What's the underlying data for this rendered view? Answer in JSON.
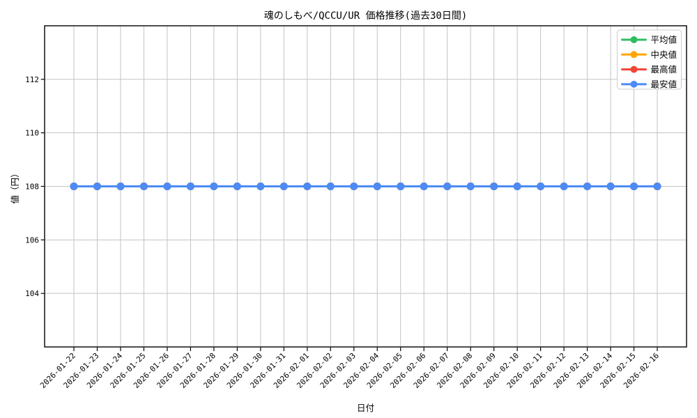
{
  "chart_data": {
    "type": "line",
    "title": "魂のしもべ/QCCU/UR 価格推移(過去30日間)",
    "xlabel": "日付",
    "ylabel": "値（円）",
    "x": [
      "2026-01-22",
      "2026-01-23",
      "2026-01-24",
      "2026-01-25",
      "2026-01-26",
      "2026-01-27",
      "2026-01-28",
      "2026-01-29",
      "2026-01-30",
      "2026-01-31",
      "2026-02-01",
      "2026-02-02",
      "2026-02-03",
      "2026-02-04",
      "2026-02-05",
      "2026-02-06",
      "2026-02-07",
      "2026-02-08",
      "2026-02-09",
      "2026-02-10",
      "2026-02-11",
      "2026-02-12",
      "2026-02-13",
      "2026-02-14",
      "2026-02-15",
      "2026-02-16"
    ],
    "series": [
      {
        "name": "平均値",
        "color": "#2EBD60",
        "values": [
          108,
          108,
          108,
          108,
          108,
          108,
          108,
          108,
          108,
          108,
          108,
          108,
          108,
          108,
          108,
          108,
          108,
          108,
          108,
          108,
          108,
          108,
          108,
          108,
          108,
          108
        ]
      },
      {
        "name": "中央値",
        "color": "#FFA500",
        "values": [
          108,
          108,
          108,
          108,
          108,
          108,
          108,
          108,
          108,
          108,
          108,
          108,
          108,
          108,
          108,
          108,
          108,
          108,
          108,
          108,
          108,
          108,
          108,
          108,
          108,
          108
        ]
      },
      {
        "name": "最高値",
        "color": "#F44336",
        "values": [
          108,
          108,
          108,
          108,
          108,
          108,
          108,
          108,
          108,
          108,
          108,
          108,
          108,
          108,
          108,
          108,
          108,
          108,
          108,
          108,
          108,
          108,
          108,
          108,
          108,
          108
        ]
      },
      {
        "name": "最安値",
        "color": "#4C8BF5",
        "values": [
          108,
          108,
          108,
          108,
          108,
          108,
          108,
          108,
          108,
          108,
          108,
          108,
          108,
          108,
          108,
          108,
          108,
          108,
          108,
          108,
          108,
          108,
          108,
          108,
          108,
          108
        ]
      }
    ],
    "ylim": [
      102,
      114
    ],
    "yticks": [
      104,
      106,
      108,
      110,
      112
    ],
    "grid": true,
    "grid_color": "#c3c3c3",
    "spine_color": "#000000",
    "legend_position": "upper right",
    "marker": "circle"
  }
}
